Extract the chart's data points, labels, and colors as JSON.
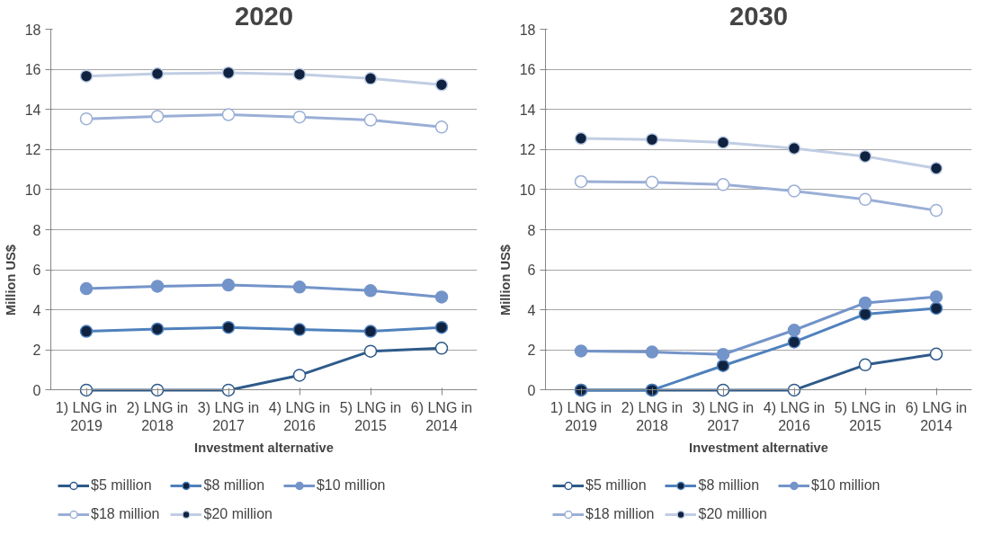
{
  "chart_data": [
    {
      "type": "line",
      "title": "2020",
      "xlabel": "Investment alternative",
      "ylabel": "Million US$",
      "categories": [
        "1) LNG in\n2019",
        "2) LNG in\n2018",
        "3) LNG in\n2017",
        "4) LNG in\n2016",
        "5) LNG in\n2015",
        "6) LNG in\n2014"
      ],
      "ylim": [
        0,
        18
      ],
      "yticks": [
        0,
        2,
        4,
        6,
        8,
        10,
        12,
        14,
        16,
        18
      ],
      "grid": "y",
      "legend": "bottom",
      "marker": "circle",
      "line_style": "solid",
      "series": [
        {
          "name": "$5 million",
          "color": "#2e5a8a",
          "colors": [
            "#ffffff",
            "#ffffff",
            "#ffffff",
            "#ffffff",
            "#ffffff",
            "#ffffff"
          ],
          "values": [
            0,
            0,
            0,
            0.74,
            1.94,
            2.09
          ]
        },
        {
          "name": "$8 million",
          "color": "#4f81bd",
          "colors": [
            "#0f2341",
            "#0f2341",
            "#0f2341",
            "#0f2341",
            "#0f2341",
            "#0f2341"
          ],
          "values": [
            2.93,
            3.05,
            3.13,
            3.02,
            2.93,
            3.13
          ]
        },
        {
          "name": "$10 million",
          "color": "#7394c9",
          "colors": [
            "#7394c9",
            "#7394c9",
            "#7394c9",
            "#7394c9",
            "#7394c9",
            "#7394c9"
          ],
          "values": [
            5.06,
            5.18,
            5.24,
            5.14,
            4.96,
            4.64
          ]
        },
        {
          "name": "$18 million",
          "color": "#9aafd6",
          "colors": [
            "#ffffff",
            "#ffffff",
            "#ffffff",
            "#ffffff",
            "#ffffff",
            "#ffffff"
          ],
          "values": [
            13.53,
            13.65,
            13.74,
            13.62,
            13.47,
            13.12
          ]
        },
        {
          "name": "$20 million",
          "color": "#c0cde4",
          "colors": [
            "#0f2341",
            "#0f2341",
            "#0f2341",
            "#0f2341",
            "#0f2341",
            "#0f2341"
          ],
          "values": [
            15.66,
            15.78,
            15.83,
            15.75,
            15.54,
            15.23
          ]
        }
      ]
    },
    {
      "type": "line",
      "title": "2030",
      "xlabel": "Investment alternative",
      "ylabel": "Million US$",
      "categories": [
        "1) LNG in\n2019",
        "2) LNG in\n2018",
        "3) LNG in\n2017",
        "4) LNG in\n2016",
        "5) LNG in\n2015",
        "6) LNG in\n2014"
      ],
      "ylim": [
        0,
        18
      ],
      "yticks": [
        0,
        2,
        4,
        6,
        8,
        10,
        12,
        14,
        16,
        18
      ],
      "grid": "y",
      "legend": "bottom",
      "marker": "circle",
      "line_style": "solid",
      "series": [
        {
          "name": "$5 million",
          "color": "#2e5a8a",
          "colors": [
            "#ffffff",
            "#ffffff",
            "#ffffff",
            "#ffffff",
            "#ffffff",
            "#ffffff"
          ],
          "values": [
            0,
            0,
            0,
            0,
            1.26,
            1.8
          ]
        },
        {
          "name": "$8 million",
          "color": "#4f81bd",
          "colors": [
            "#0f2341",
            "#0f2341",
            "#0f2341",
            "#0f2341",
            "#0f2341",
            "#0f2341"
          ],
          "values": [
            0,
            0,
            1.22,
            2.4,
            3.79,
            4.08
          ]
        },
        {
          "name": "$10 million",
          "color": "#7394c9",
          "colors": [
            "#7394c9",
            "#7394c9",
            "#7394c9",
            "#7394c9",
            "#7394c9",
            "#7394c9"
          ],
          "values": [
            1.95,
            1.9,
            1.78,
            2.99,
            4.35,
            4.65
          ]
        },
        {
          "name": "$18 million",
          "color": "#9aafd6",
          "colors": [
            "#ffffff",
            "#ffffff",
            "#ffffff",
            "#ffffff",
            "#ffffff",
            "#ffffff"
          ],
          "values": [
            10.4,
            10.37,
            10.25,
            9.93,
            9.51,
            8.96
          ]
        },
        {
          "name": "$20 million",
          "color": "#c0cde4",
          "colors": [
            "#0f2341",
            "#0f2341",
            "#0f2341",
            "#0f2341",
            "#0f2341",
            "#0f2341"
          ],
          "values": [
            12.55,
            12.5,
            12.35,
            12.06,
            11.66,
            11.06
          ]
        }
      ]
    }
  ]
}
